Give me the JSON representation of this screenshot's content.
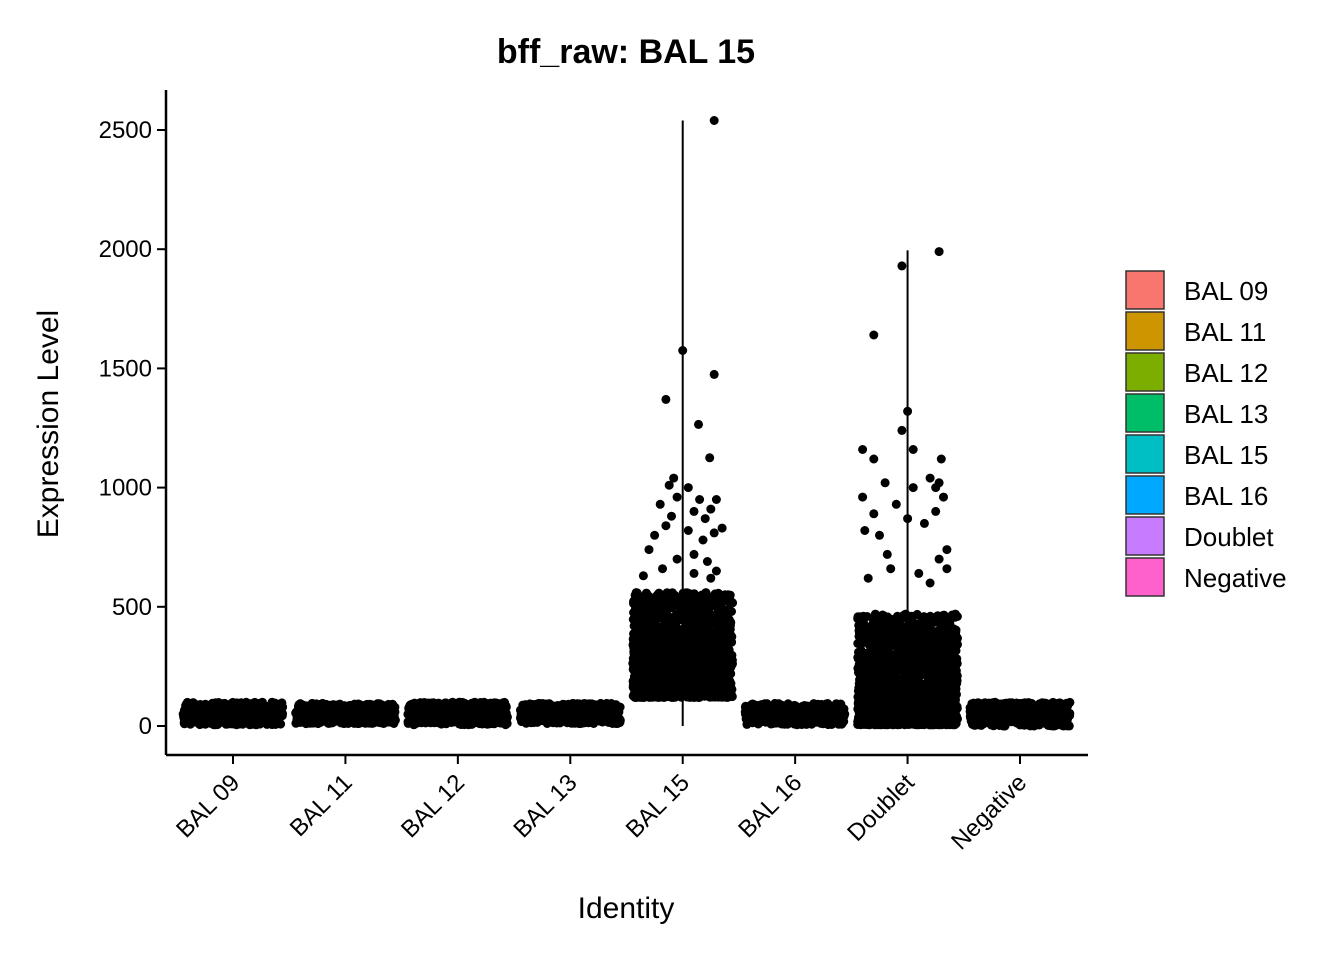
{
  "chart_data": {
    "type": "scatter",
    "subtype": "violin-jitter",
    "title": "bff_raw: BAL 15",
    "xlabel": "Identity",
    "ylabel": "Expression Level",
    "categories": [
      "BAL 09",
      "BAL 11",
      "BAL 12",
      "BAL 13",
      "BAL 15",
      "BAL 16",
      "Doublet",
      "Negative"
    ],
    "yticks": [
      0,
      500,
      1000,
      1500,
      2000,
      2500
    ],
    "ylim": [
      -120,
      2670
    ],
    "grid": false,
    "legend": {
      "position": "right",
      "entries": [
        {
          "label": "BAL 09",
          "color": "#F8766D"
        },
        {
          "label": "BAL 11",
          "color": "#CD9600"
        },
        {
          "label": "BAL 12",
          "color": "#7CAE00"
        },
        {
          "label": "BAL 13",
          "color": "#00BE67"
        },
        {
          "label": "BAL 15",
          "color": "#00BFC4"
        },
        {
          "label": "BAL 16",
          "color": "#00A9FF"
        },
        {
          "label": "Doublet",
          "color": "#C77CFF"
        },
        {
          "label": "Negative",
          "color": "#FF61CC"
        }
      ]
    },
    "series": [
      {
        "category": "BAL 09",
        "range": [
          5,
          100
        ],
        "vline": [],
        "outliers": []
      },
      {
        "category": "BAL 11",
        "range": [
          10,
          95
        ],
        "vline": [],
        "outliers": []
      },
      {
        "category": "BAL 12",
        "range": [
          5,
          100
        ],
        "vline": [],
        "outliers": []
      },
      {
        "category": "BAL 13",
        "range": [
          10,
          95
        ],
        "vline": [],
        "outliers": []
      },
      {
        "category": "BAL 15",
        "range": [
          120,
          560
        ],
        "vline": [
          0,
          2540
        ],
        "outliers": [
          [
            -0.08,
            1040
          ],
          [
            -0.12,
            1010
          ],
          [
            0.05,
            1000
          ],
          [
            -0.05,
            960
          ],
          [
            0.15,
            950
          ],
          [
            0.3,
            950
          ],
          [
            -0.2,
            930
          ],
          [
            0.25,
            910
          ],
          [
            0.1,
            900
          ],
          [
            -0.1,
            880
          ],
          [
            0.2,
            870
          ],
          [
            -0.15,
            840
          ],
          [
            0.35,
            830
          ],
          [
            0.05,
            820
          ],
          [
            0.28,
            810
          ],
          [
            -0.25,
            800
          ],
          [
            0.18,
            780
          ],
          [
            -0.3,
            740
          ],
          [
            0.1,
            720
          ],
          [
            -0.05,
            700
          ],
          [
            0.22,
            690
          ],
          [
            -0.18,
            660
          ],
          [
            0.3,
            650
          ],
          [
            0.1,
            640
          ],
          [
            -0.35,
            630
          ],
          [
            0.25,
            620
          ],
          [
            0.0,
            1575
          ],
          [
            0.28,
            1475
          ],
          [
            -0.15,
            1370
          ],
          [
            0.14,
            1265
          ],
          [
            0.24,
            1125
          ],
          [
            0.28,
            2540
          ]
        ]
      },
      {
        "category": "BAL 16",
        "range": [
          5,
          95
        ],
        "vline": [],
        "outliers": []
      },
      {
        "category": "Doublet",
        "range": [
          5,
          470
        ],
        "vline": [
          0,
          1995
        ],
        "outliers": [
          [
            -0.4,
            1160
          ],
          [
            -0.3,
            1120
          ],
          [
            0.3,
            1120
          ],
          [
            0.2,
            1040
          ],
          [
            0.28,
            1020
          ],
          [
            0.25,
            1000
          ],
          [
            -0.2,
            1020
          ],
          [
            0.05,
            1000
          ],
          [
            -0.4,
            960
          ],
          [
            0.32,
            960
          ],
          [
            -0.1,
            930
          ],
          [
            0.25,
            900
          ],
          [
            -0.3,
            890
          ],
          [
            0.0,
            870
          ],
          [
            -0.38,
            820
          ],
          [
            0.15,
            850
          ],
          [
            -0.25,
            800
          ],
          [
            0.35,
            740
          ],
          [
            -0.18,
            720
          ],
          [
            0.28,
            700
          ],
          [
            -0.15,
            660
          ],
          [
            0.35,
            660
          ],
          [
            0.1,
            640
          ],
          [
            -0.35,
            620
          ],
          [
            0.2,
            600
          ],
          [
            -0.05,
            1930
          ],
          [
            -0.3,
            1640
          ],
          [
            0.0,
            1320
          ],
          [
            -0.05,
            1240
          ],
          [
            0.05,
            1160
          ],
          [
            0.28,
            1990
          ]
        ]
      },
      {
        "category": "Negative",
        "range": [
          0,
          100
        ],
        "vline": [],
        "outliers": []
      }
    ]
  }
}
